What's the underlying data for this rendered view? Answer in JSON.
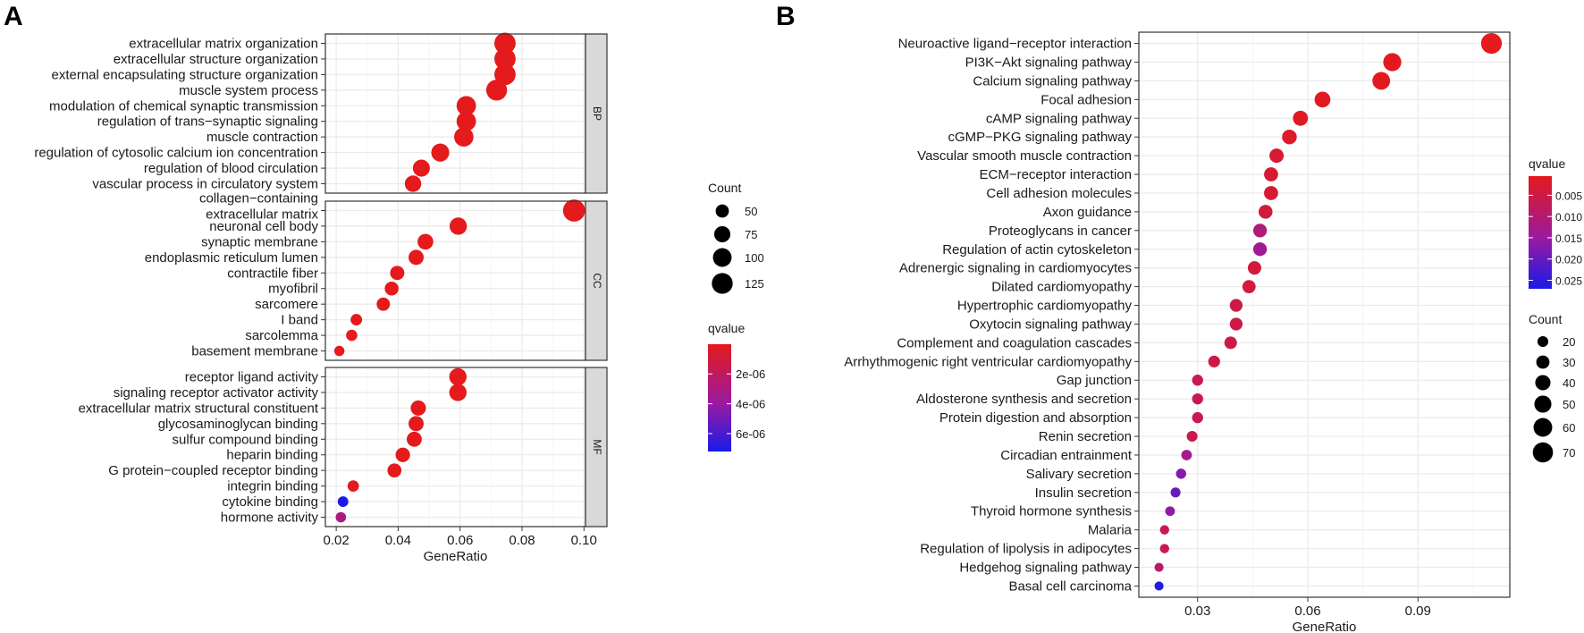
{
  "figure": {
    "panel_a_letter": "A",
    "panel_b_letter": "B"
  },
  "colors": {
    "high": "#E41A1C",
    "mid": "#9A1AA0",
    "low": "#1A1AE8",
    "panel_bg": "#FFFFFF",
    "grid": "#EBEBEB",
    "strip": "#D9D9D9"
  },
  "chart_data": [
    {
      "type": "scatter",
      "panel": "A",
      "xlabel": "GeneRatio",
      "ylabel": "",
      "xlim": [
        0.0165,
        0.1005
      ],
      "xticks": [
        0.02,
        0.04,
        0.06,
        0.08,
        0.1
      ],
      "xtick_labels": [
        "0.02",
        "0.04",
        "0.06",
        "0.08",
        "0.10"
      ],
      "color_legend": {
        "title": "qvalue",
        "labels": [
          "2e-06",
          "4e-06",
          "6e-06"
        ],
        "values": [
          2e-06,
          4e-06,
          6e-06
        ],
        "range": [
          1e-08,
          7.2e-06
        ]
      },
      "size_legend": {
        "title": "Count",
        "values": [
          50,
          75,
          100,
          125
        ],
        "labels": [
          "50",
          "75",
          "100",
          "125"
        ]
      },
      "facets": [
        {
          "label": "BP",
          "terms": [
            {
              "term": "extracellular matrix organization",
              "ratio": 0.0745,
              "count": 130,
              "qvalue": 1e-08
            },
            {
              "term": "extracellular structure organization",
              "ratio": 0.0745,
              "count": 130,
              "qvalue": 1e-08
            },
            {
              "term": "external encapsulating structure organization",
              "ratio": 0.0745,
              "count": 130,
              "qvalue": 1e-08
            },
            {
              "term": "muscle system process",
              "ratio": 0.0718,
              "count": 125,
              "qvalue": 1e-08
            },
            {
              "term": "modulation of chemical synaptic transmission",
              "ratio": 0.062,
              "count": 108,
              "qvalue": 1e-08
            },
            {
              "term": "regulation of trans−synaptic signaling",
              "ratio": 0.062,
              "count": 108,
              "qvalue": 1e-08
            },
            {
              "term": "muscle contraction",
              "ratio": 0.0612,
              "count": 107,
              "qvalue": 1e-08
            },
            {
              "term": "regulation of cytosolic calcium ion concentration",
              "ratio": 0.0536,
              "count": 93,
              "qvalue": 1e-08
            },
            {
              "term": "regulation of blood circulation",
              "ratio": 0.0475,
              "count": 83,
              "qvalue": 1e-08
            },
            {
              "term": "vascular process in circulatory system",
              "ratio": 0.0448,
              "count": 78,
              "qvalue": 1e-08
            }
          ]
        },
        {
          "label": "CC",
          "terms": [
            {
              "term_lines": [
                "collagen−containing",
                "extracellular matrix"
              ],
              "ratio": 0.0968,
              "count": 140,
              "qvalue": 1e-08
            },
            {
              "term": "neuronal cell body",
              "ratio": 0.0594,
              "count": 86,
              "qvalue": 1e-08
            },
            {
              "term": "synaptic membrane",
              "ratio": 0.0488,
              "count": 71,
              "qvalue": 1e-08
            },
            {
              "term": "endoplasmic reticulum lumen",
              "ratio": 0.0458,
              "count": 66,
              "qvalue": 1e-08
            },
            {
              "term": "contractile fiber",
              "ratio": 0.0397,
              "count": 58,
              "qvalue": 1e-08
            },
            {
              "term": "myofibril",
              "ratio": 0.0379,
              "count": 55,
              "qvalue": 1e-08
            },
            {
              "term": "sarcomere",
              "ratio": 0.0352,
              "count": 51,
              "qvalue": 1e-08
            },
            {
              "term": "I band",
              "ratio": 0.0265,
              "count": 38,
              "qvalue": 1e-08
            },
            {
              "term": "sarcolemma",
              "ratio": 0.025,
              "count": 36,
              "qvalue": 1e-08
            },
            {
              "term": "basement membrane",
              "ratio": 0.021,
              "count": 30,
              "qvalue": 1e-08
            }
          ]
        },
        {
          "label": "MF",
          "terms": [
            {
              "term": "receptor ligand activity",
              "ratio": 0.0593,
              "count": 86,
              "qvalue": 1e-08
            },
            {
              "term": "signaling receptor activator activity",
              "ratio": 0.0593,
              "count": 86,
              "qvalue": 1e-08
            },
            {
              "term": "extracellular matrix structural constituent",
              "ratio": 0.0465,
              "count": 67,
              "qvalue": 1e-08
            },
            {
              "term": "glycosaminoglycan binding",
              "ratio": 0.0458,
              "count": 66,
              "qvalue": 1e-08
            },
            {
              "term": "sulfur compound binding",
              "ratio": 0.0452,
              "count": 65,
              "qvalue": 1e-08
            },
            {
              "term": "heparin binding",
              "ratio": 0.0415,
              "count": 60,
              "qvalue": 1e-08
            },
            {
              "term": "G protein−coupled receptor binding",
              "ratio": 0.0388,
              "count": 56,
              "qvalue": 1e-08
            },
            {
              "term": "integrin binding",
              "ratio": 0.0255,
              "count": 37,
              "qvalue": 1e-08
            },
            {
              "term": "cytokine binding",
              "ratio": 0.0222,
              "count": 32,
              "qvalue": 7.2e-06
            },
            {
              "term": "hormone activity",
              "ratio": 0.0215,
              "count": 31,
              "qvalue": 3e-06
            }
          ]
        }
      ]
    },
    {
      "type": "scatter",
      "panel": "B",
      "xlabel": "GeneRatio",
      "ylabel": "",
      "xlim": [
        0.014,
        0.115
      ],
      "xticks": [
        0.03,
        0.06,
        0.09
      ],
      "xtick_labels": [
        "0.03",
        "0.06",
        "0.09"
      ],
      "color_legend": {
        "title": "qvalue",
        "labels": [
          "0.005",
          "0.010",
          "0.015",
          "0.020",
          "0.025"
        ],
        "values": [
          0.005,
          0.01,
          0.015,
          0.02,
          0.025
        ],
        "range": [
          0.0005,
          0.027
        ]
      },
      "size_legend": {
        "title": "Count",
        "values": [
          20,
          30,
          40,
          50,
          60,
          70
        ],
        "labels": [
          "20",
          "30",
          "40",
          "50",
          "60",
          "70"
        ]
      },
      "terms": [
        {
          "term": "Neuroactive ligand−receptor interaction",
          "ratio": 0.11,
          "count": 74,
          "qvalue": 0.0005
        },
        {
          "term": "PI3K−Akt signaling pathway",
          "ratio": 0.083,
          "count": 56,
          "qvalue": 0.0008
        },
        {
          "term": "Calcium signaling pathway",
          "ratio": 0.08,
          "count": 54,
          "qvalue": 0.0008
        },
        {
          "term": "Focal adhesion",
          "ratio": 0.064,
          "count": 43,
          "qvalue": 0.001
        },
        {
          "term": "cAMP signaling pathway",
          "ratio": 0.058,
          "count": 39,
          "qvalue": 0.0015
        },
        {
          "term": "cGMP−PKG signaling pathway",
          "ratio": 0.055,
          "count": 37,
          "qvalue": 0.002
        },
        {
          "term": "Vascular smooth muscle contraction",
          "ratio": 0.0515,
          "count": 35,
          "qvalue": 0.003
        },
        {
          "term": "ECM−receptor interaction",
          "ratio": 0.05,
          "count": 34,
          "qvalue": 0.003
        },
        {
          "term": "Cell adhesion molecules",
          "ratio": 0.05,
          "count": 34,
          "qvalue": 0.003
        },
        {
          "term": "Axon guidance",
          "ratio": 0.0485,
          "count": 33,
          "qvalue": 0.004
        },
        {
          "term": "Proteoglycans in cancer",
          "ratio": 0.047,
          "count": 32,
          "qvalue": 0.011
        },
        {
          "term": "Regulation of actin cytoskeleton",
          "ratio": 0.047,
          "count": 32,
          "qvalue": 0.014
        },
        {
          "term": "Adrenergic signaling in cardiomyocytes",
          "ratio": 0.0455,
          "count": 31,
          "qvalue": 0.004
        },
        {
          "term": "Dilated cardiomyopathy",
          "ratio": 0.044,
          "count": 30,
          "qvalue": 0.004
        },
        {
          "term": "Hypertrophic cardiomyopathy",
          "ratio": 0.0405,
          "count": 28,
          "qvalue": 0.005
        },
        {
          "term": "Oxytocin signaling pathway",
          "ratio": 0.0405,
          "count": 28,
          "qvalue": 0.005
        },
        {
          "term": "Complement and coagulation cascades",
          "ratio": 0.039,
          "count": 27,
          "qvalue": 0.005
        },
        {
          "term": "Arrhythmogenic right ventricular cardiomyopathy",
          "ratio": 0.0345,
          "count": 24,
          "qvalue": 0.005
        },
        {
          "term": "Gap junction",
          "ratio": 0.03,
          "count": 21,
          "qvalue": 0.006
        },
        {
          "term": "Aldosterone synthesis and secretion",
          "ratio": 0.03,
          "count": 21,
          "qvalue": 0.006
        },
        {
          "term": "Protein digestion and absorption",
          "ratio": 0.03,
          "count": 21,
          "qvalue": 0.006
        },
        {
          "term": "Renin secretion",
          "ratio": 0.0285,
          "count": 20,
          "qvalue": 0.006
        },
        {
          "term": "Circadian entrainment",
          "ratio": 0.027,
          "count": 19,
          "qvalue": 0.013
        },
        {
          "term": "Salivary secretion",
          "ratio": 0.0255,
          "count": 18,
          "qvalue": 0.017
        },
        {
          "term": "Insulin secretion",
          "ratio": 0.024,
          "count": 17,
          "qvalue": 0.02
        },
        {
          "term": "Thyroid hormone synthesis",
          "ratio": 0.0225,
          "count": 16,
          "qvalue": 0.016
        },
        {
          "term": "Malaria",
          "ratio": 0.021,
          "count": 15,
          "qvalue": 0.006
        },
        {
          "term": "Regulation of lipolysis in adipocytes",
          "ratio": 0.021,
          "count": 15,
          "qvalue": 0.006
        },
        {
          "term": "Hedgehog signaling pathway",
          "ratio": 0.0195,
          "count": 14,
          "qvalue": 0.009
        },
        {
          "term": "Basal cell carcinoma",
          "ratio": 0.0195,
          "count": 14,
          "qvalue": 0.026
        }
      ]
    }
  ]
}
